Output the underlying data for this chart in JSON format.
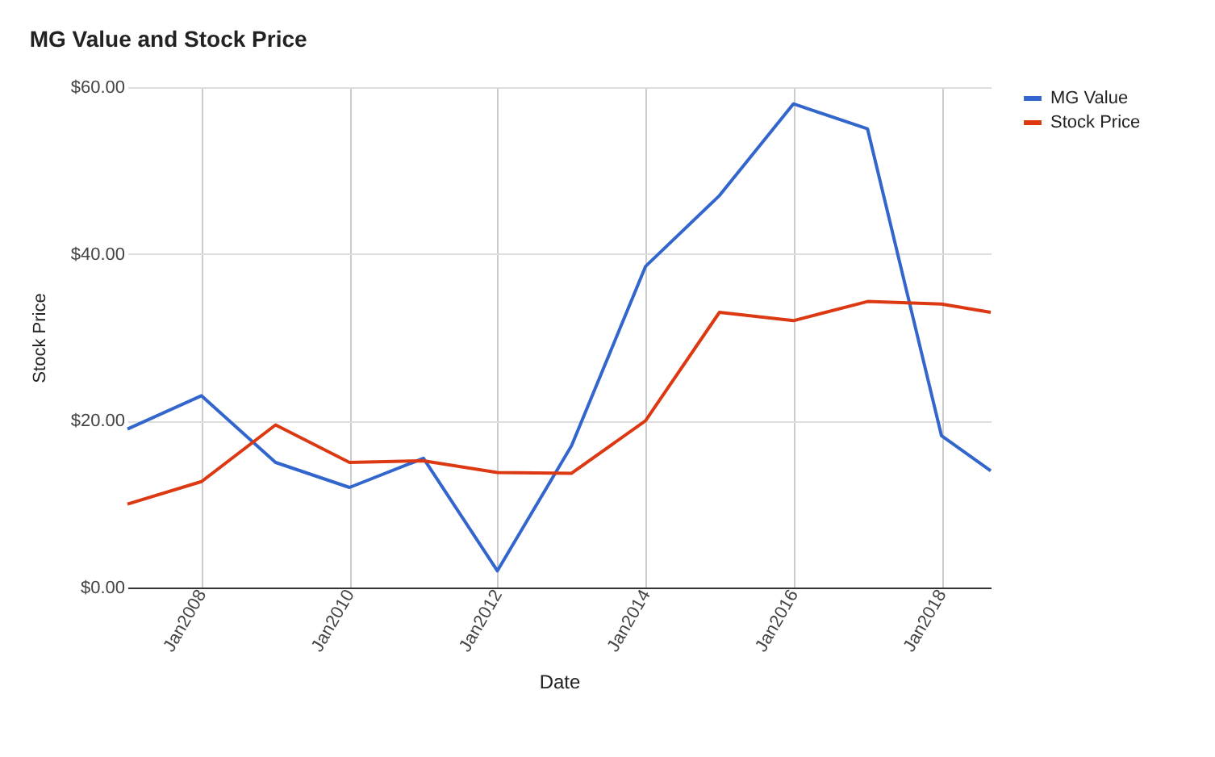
{
  "chart_data": {
    "type": "line",
    "title": "MG Value and Stock Price",
    "xlabel": "Date",
    "ylabel": "Stock Price",
    "x": [
      "2006-12-31",
      "2007-12-31",
      "2008-12-31",
      "2009-12-31",
      "2010-12-31",
      "2011-12-31",
      "2012-12-31",
      "2013-12-31",
      "2014-12-31",
      "2015-12-31",
      "2016-12-31",
      "2017-12-31",
      "2018-08-31"
    ],
    "series": [
      {
        "name": "MG Value",
        "color": "#3366cc",
        "values": [
          19,
          23,
          15,
          12,
          15.5,
          2,
          17,
          38.5,
          47,
          58,
          55,
          18.2,
          14
        ]
      },
      {
        "name": "Stock Price",
        "color": "#dc3912",
        "values": [
          10,
          12.7,
          19.5,
          15,
          15.2,
          13.8,
          13.7,
          20,
          33,
          32,
          34.3,
          34,
          33
        ]
      }
    ],
    "xlim": [
      "2006-12-31",
      "2018-08-31"
    ],
    "xticks": [
      {
        "value": "2008-01-01",
        "label": "Jan2008"
      },
      {
        "value": "2010-01-01",
        "label": "Jan2010"
      },
      {
        "value": "2012-01-01",
        "label": "Jan2012"
      },
      {
        "value": "2014-01-01",
        "label": "Jan2014"
      },
      {
        "value": "2016-01-01",
        "label": "Jan2016"
      },
      {
        "value": "2018-01-01",
        "label": "Jan2018"
      }
    ],
    "ylim": [
      0,
      60
    ],
    "yticks": [
      {
        "value": 0,
        "label": "$0.00"
      },
      {
        "value": 20,
        "label": "$20.00"
      },
      {
        "value": 40,
        "label": "$40.00"
      },
      {
        "value": 60,
        "label": "$60.00"
      }
    ],
    "grid": true,
    "legend": "top right",
    "line_style": "solid",
    "marker": "none"
  }
}
